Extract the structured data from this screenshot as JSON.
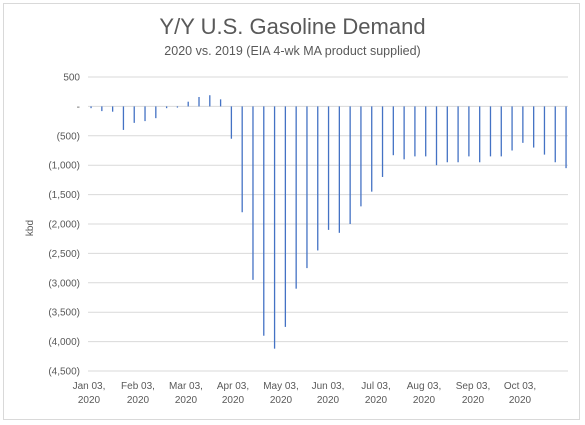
{
  "chart_data": {
    "type": "bar",
    "title": "Y/Y U.S. Gasoline Demand",
    "subtitle": "2020 vs. 2019 (EIA 4-wk MA product supplied)",
    "ylabel": "kbd",
    "xlabel": "",
    "ylim": [
      -4500,
      500
    ],
    "yticks": [
      500,
      0,
      -500,
      -1000,
      -1500,
      -2000,
      -2500,
      -3000,
      -3500,
      -4000,
      -4500
    ],
    "ytick_labels": [
      "500",
      "-",
      "(500)",
      "(1,000)",
      "(1,500)",
      "(2,000)",
      "(2,500)",
      "(3,000)",
      "(3,500)",
      "(4,000)",
      "(4,500)"
    ],
    "xtick_labels": [
      [
        "Jan 03,",
        "2020"
      ],
      [
        "Feb 03,",
        "2020"
      ],
      [
        "Mar 03,",
        "2020"
      ],
      [
        "Apr 03,",
        "2020"
      ],
      [
        "May 03,",
        "2020"
      ],
      [
        "Jun 03,",
        "2020"
      ],
      [
        "Jul 03,",
        "2020"
      ],
      [
        "Aug 03,",
        "2020"
      ],
      [
        "Sep 03,",
        "2020"
      ],
      [
        "Oct 03,",
        "2020"
      ]
    ],
    "grid": true,
    "bar_color": "#4472c4",
    "values": [
      -30,
      -80,
      -90,
      -400,
      -280,
      -250,
      -200,
      -30,
      -20,
      80,
      160,
      190,
      120,
      -550,
      -1800,
      -2950,
      -3900,
      -4120,
      -3750,
      -3100,
      -2750,
      -2450,
      -2100,
      -2150,
      -2000,
      -1700,
      -1450,
      -1200,
      -830,
      -900,
      -850,
      -850,
      -1000,
      -950,
      -950,
      -850,
      -950,
      -850,
      -850,
      -750,
      -620,
      -700,
      -820,
      -950,
      -1050
    ]
  }
}
